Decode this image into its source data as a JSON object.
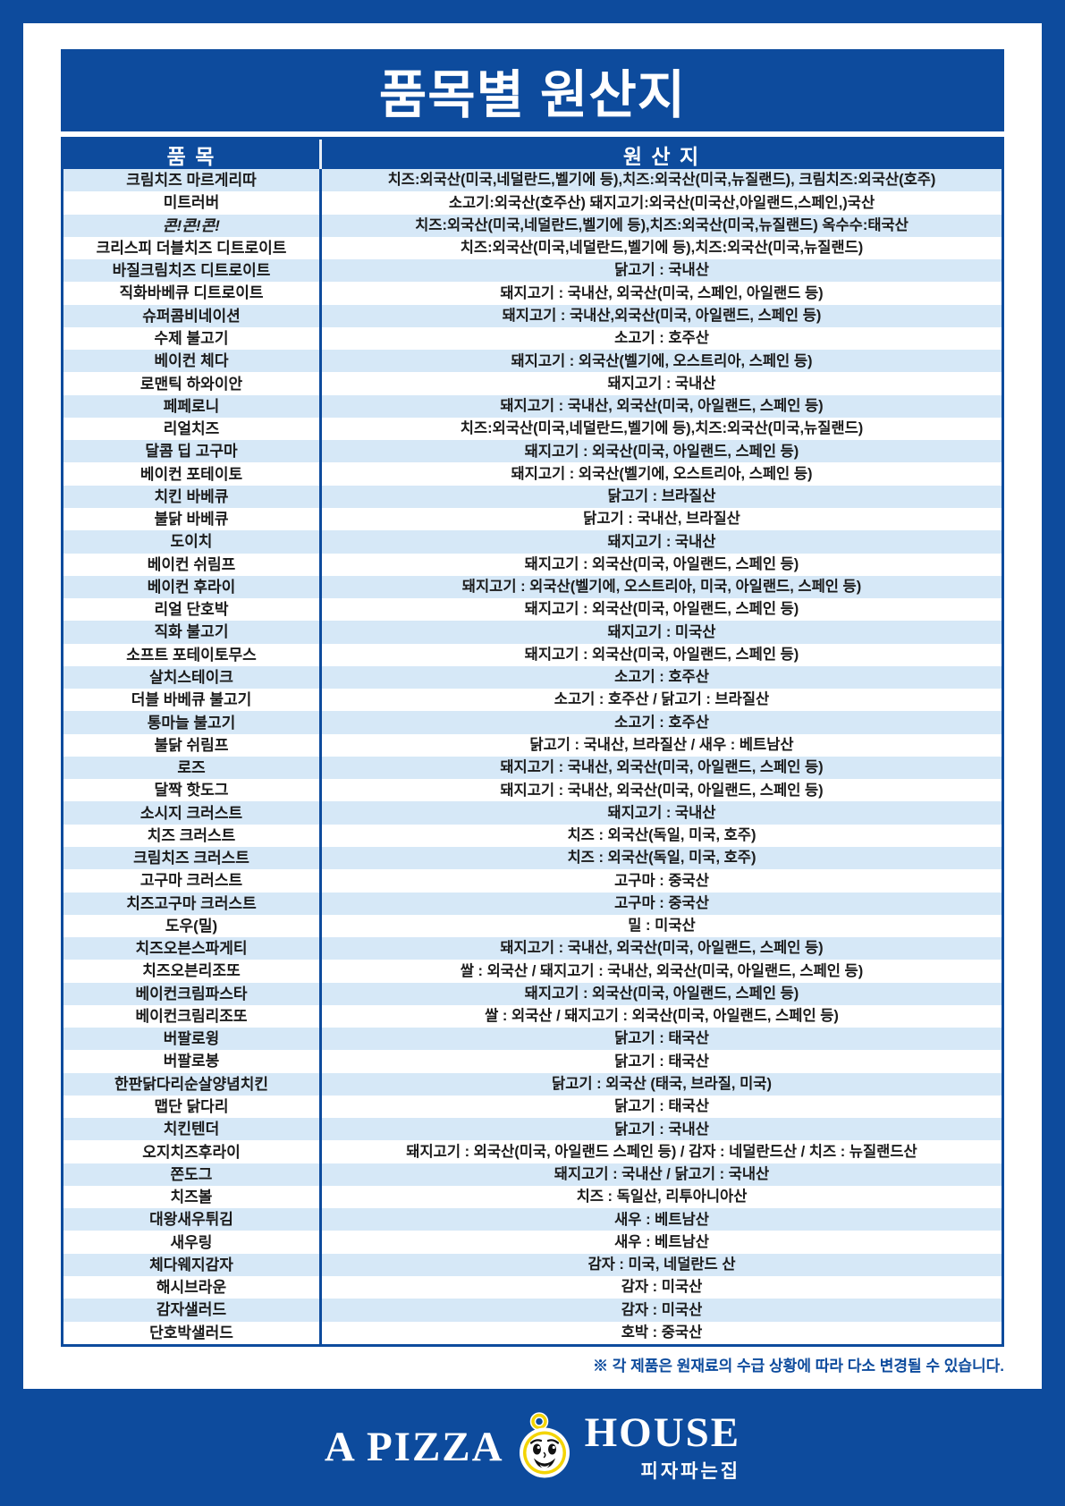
{
  "page": {
    "title": "품목별 원산지",
    "footnote": "※ 각 제품은 원재료의 수급 상황에 따라 다소 변경될 수 있습니다."
  },
  "table": {
    "columns": [
      "품 목",
      "원 산 지"
    ],
    "rows": [
      {
        "item": "크림치즈 마르게리따",
        "origin": "치즈:외국산(미국,네덜란드,벨기에 등),치즈:외국산(미국,뉴질랜드), 크림치즈:외국산(호주)"
      },
      {
        "item": "미트러버",
        "origin": "소고기:외국산(호주산) 돼지고기:외국산(미국산,아일랜드,스페인,)국산"
      },
      {
        "item": "콘!콘!콘!",
        "origin": "치즈:외국산(미국,네덜란드,벨기에 등),치즈:외국산(미국,뉴질랜드) 옥수수:태국산",
        "italic": true
      },
      {
        "item": "크리스피 더블치즈 디트로이트",
        "origin": "치즈:외국산(미국,네덜란드,벨기에 등),치즈:외국산(미국,뉴질랜드)"
      },
      {
        "item": "바질크림치즈 디트로이트",
        "origin": "닭고기 : 국내산"
      },
      {
        "item": "직화바베큐 디트로이트",
        "origin": "돼지고기 : 국내산, 외국산(미국, 스페인, 아일랜드 등)"
      },
      {
        "item": "슈퍼콤비네이션",
        "origin": "돼지고기 : 국내산,외국산(미국, 아일랜드, 스페인 등)"
      },
      {
        "item": "수제 불고기",
        "origin": "소고기 : 호주산"
      },
      {
        "item": "베이컨 체다",
        "origin": "돼지고기 : 외국산(벨기에, 오스트리아, 스페인 등)"
      },
      {
        "item": "로맨틱 하와이안",
        "origin": "돼지고기 : 국내산"
      },
      {
        "item": "페페로니",
        "origin": "돼지고기 : 국내산, 외국산(미국, 아일랜드, 스페인 등)"
      },
      {
        "item": "리얼치즈",
        "origin": "치즈:외국산(미국,네덜란드,벨기에 등),치즈:외국산(미국,뉴질랜드)"
      },
      {
        "item": "달콤 딥 고구마",
        "origin": "돼지고기 : 외국산(미국, 아일랜드, 스페인 등)"
      },
      {
        "item": "베이컨 포테이토",
        "origin": "돼지고기 : 외국산(벨기에, 오스트리아, 스페인 등)"
      },
      {
        "item": "치킨 바베큐",
        "origin": "닭고기 : 브라질산"
      },
      {
        "item": "불닭 바베큐",
        "origin": "닭고기 : 국내산, 브라질산"
      },
      {
        "item": "도이치",
        "origin": "돼지고기 : 국내산"
      },
      {
        "item": "베이컨 쉬림프",
        "origin": "돼지고기 : 외국산(미국, 아일랜드, 스페인 등)"
      },
      {
        "item": "베이컨 후라이",
        "origin": "돼지고기 : 외국산(벨기에, 오스트리아, 미국, 아일랜드, 스페인 등)"
      },
      {
        "item": "리얼 단호박",
        "origin": "돼지고기 : 외국산(미국, 아일랜드, 스페인 등)"
      },
      {
        "item": "직화 불고기",
        "origin": "돼지고기 : 미국산"
      },
      {
        "item": "소프트 포테이토무스",
        "origin": "돼지고기 : 외국산(미국, 아일랜드, 스페인 등)"
      },
      {
        "item": "살치스테이크",
        "origin": "소고기 : 호주산"
      },
      {
        "item": "더블 바베큐 불고기",
        "origin": "소고기 : 호주산 / 닭고기 : 브라질산"
      },
      {
        "item": "통마늘 불고기",
        "origin": "소고기 : 호주산"
      },
      {
        "item": "불닭 쉬림프",
        "origin": "닭고기 : 국내산, 브라질산 / 새우 : 베트남산"
      },
      {
        "item": "로즈",
        "origin": "돼지고기 : 국내산, 외국산(미국, 아일랜드, 스페인 등)"
      },
      {
        "item": "달짝 핫도그",
        "origin": "돼지고기 : 국내산, 외국산(미국, 아일랜드, 스페인 등)"
      },
      {
        "item": "소시지 크러스트",
        "origin": "돼지고기 : 국내산"
      },
      {
        "item": "치즈 크러스트",
        "origin": "치즈 : 외국산(독일, 미국, 호주)"
      },
      {
        "item": "크림치즈 크러스트",
        "origin": "치즈 : 외국산(독일, 미국, 호주)"
      },
      {
        "item": "고구마 크러스트",
        "origin": "고구마 : 중국산"
      },
      {
        "item": "치즈고구마 크러스트",
        "origin": "고구마 : 중국산"
      },
      {
        "item": "도우(밀)",
        "origin": "밀 : 미국산"
      },
      {
        "item": "치즈오븐스파게티",
        "origin": "돼지고기 : 국내산, 외국산(미국, 아일랜드, 스페인 등)"
      },
      {
        "item": "치즈오븐리조또",
        "origin": "쌀 : 외국산 / 돼지고기 : 국내산, 외국산(미국, 아일랜드, 스페인 등)"
      },
      {
        "item": "베이컨크림파스타",
        "origin": "돼지고기 : 외국산(미국, 아일랜드, 스페인 등)"
      },
      {
        "item": "베이컨크림리조또",
        "origin": "쌀 : 외국산 / 돼지고기 : 외국산(미국, 아일랜드, 스페인 등)"
      },
      {
        "item": "버팔로윙",
        "origin": "닭고기 : 태국산"
      },
      {
        "item": "버팔로봉",
        "origin": "닭고기 : 태국산"
      },
      {
        "item": "한판닭다리순살양념치킨",
        "origin": "닭고기 : 외국산 (태국, 브라질, 미국)"
      },
      {
        "item": "맵단 닭다리",
        "origin": "닭고기 : 태국산"
      },
      {
        "item": "치킨텐더",
        "origin": "닭고기 : 국내산"
      },
      {
        "item": "오지치즈후라이",
        "origin": "돼지고기 : 외국산(미국, 아일랜드 스페인 등) / 감자 : 네덜란드산 / 치즈 : 뉴질랜드산"
      },
      {
        "item": "쫀도그",
        "origin": "돼지고기 : 국내산 / 닭고기 : 국내산"
      },
      {
        "item": "치즈볼",
        "origin": "치즈 : 독일산, 리투아니아산"
      },
      {
        "item": "대왕새우튀김",
        "origin": "새우 : 베트남산"
      },
      {
        "item": "새우링",
        "origin": "새우 : 베트남산"
      },
      {
        "item": "체다웨지감자",
        "origin": "감자 : 미국, 네덜란드 산"
      },
      {
        "item": "해시브라운",
        "origin": "감자 : 미국산"
      },
      {
        "item": "감자샐러드",
        "origin": "감자 : 미국산"
      },
      {
        "item": "단호박샐러드",
        "origin": "호박 : 중국산"
      }
    ]
  },
  "logo": {
    "left": "A PIZZA",
    "right": "HOUSE",
    "subtitle": "피자파는집",
    "mascot_icon": "pizza-house-mascot-face"
  },
  "colors": {
    "primary_blue": "#0d4b9d",
    "row_alt_blue": "#d6e8f7",
    "logo_yellow": "#f3d403"
  }
}
